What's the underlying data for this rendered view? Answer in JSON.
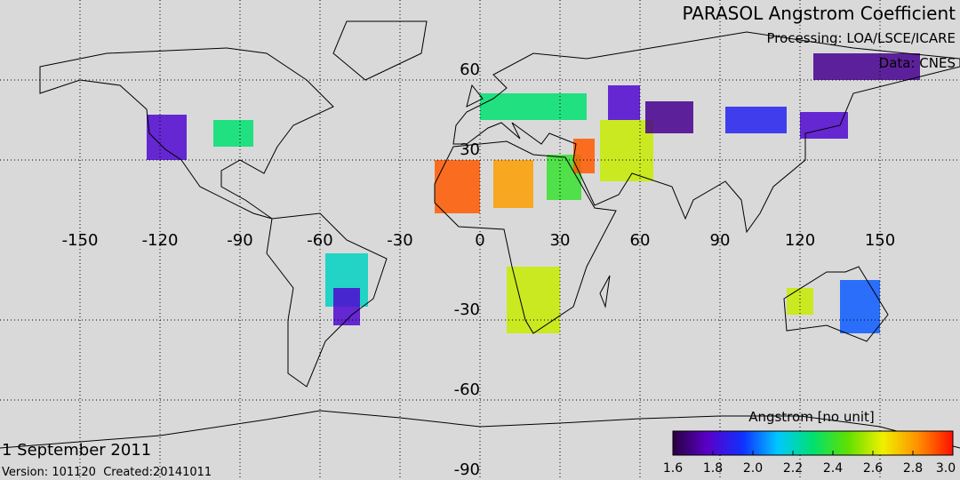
{
  "title": "PARASOL Angstrom Coefficient",
  "processing": "Processing: LOA/LSCE/ICARE",
  "source": "Data: CNES",
  "date": "1 September 2011",
  "version": "Version: 101120  Created:20141011",
  "map": {
    "xlim": [
      -180,
      180
    ],
    "ylim": [
      -90,
      90
    ],
    "xticks": [
      -150,
      -120,
      -90,
      -60,
      -30,
      0,
      30,
      60,
      90,
      120,
      150
    ],
    "yticks": [
      60,
      30,
      -30,
      -60,
      -90
    ]
  },
  "colorbar": {
    "label": "Angstrom [no unit]",
    "clim": [
      1.6,
      3.0
    ],
    "ticks": [
      1.6,
      1.8,
      {
        "value": 2,
        "label": "2.0"
      },
      2.2,
      2.4,
      2.6,
      2.8,
      {
        "value": 3,
        "label": "3.0"
      }
    ],
    "colors": [
      "#2a0040",
      "#5a00c8",
      "#1030ff",
      "#00c8ff",
      "#00e070",
      "#60e000",
      "#f0f000",
      "#ff9000",
      "#ff1000"
    ]
  },
  "swaths": [
    {
      "lon": [
        -17,
        0
      ],
      "lat": [
        10,
        30
      ],
      "value": 2.9
    },
    {
      "lon": [
        5,
        20
      ],
      "lat": [
        12,
        30
      ],
      "value": 2.8
    },
    {
      "lon": [
        25,
        38
      ],
      "lat": [
        15,
        32
      ],
      "value": 2.4
    },
    {
      "lon": [
        35,
        43
      ],
      "lat": [
        25,
        38
      ],
      "value": 2.9
    },
    {
      "lon": [
        45,
        65
      ],
      "lat": [
        22,
        45
      ],
      "value": 2.6
    },
    {
      "lon": [
        48,
        60
      ],
      "lat": [
        45,
        58
      ],
      "value": 1.8
    },
    {
      "lon": [
        62,
        80
      ],
      "lat": [
        40,
        52
      ],
      "value": 1.7
    },
    {
      "lon": [
        92,
        115
      ],
      "lat": [
        40,
        50
      ],
      "value": 1.9
    },
    {
      "lon": [
        120,
        138
      ],
      "lat": [
        38,
        48
      ],
      "value": 1.8
    },
    {
      "lon": [
        125,
        165
      ],
      "lat": [
        60,
        70
      ],
      "value": 1.7
    },
    {
      "lon": [
        0,
        40
      ],
      "lat": [
        45,
        55
      ],
      "value": 2.3
    },
    {
      "lon": [
        10,
        30
      ],
      "lat": [
        -35,
        -10
      ],
      "value": 2.6
    },
    {
      "lon": [
        -58,
        -42
      ],
      "lat": [
        -25,
        -5
      ],
      "value": 2.2
    },
    {
      "lon": [
        -55,
        -45
      ],
      "lat": [
        -32,
        -18
      ],
      "value": 1.8
    },
    {
      "lon": [
        135,
        150
      ],
      "lat": [
        -35,
        -15
      ],
      "value": 2.0
    },
    {
      "lon": [
        115,
        125
      ],
      "lat": [
        -28,
        -18
      ],
      "value": 2.6
    },
    {
      "lon": [
        -125,
        -110
      ],
      "lat": [
        30,
        47
      ],
      "value": 1.8
    },
    {
      "lon": [
        -100,
        -85
      ],
      "lat": [
        35,
        45
      ],
      "value": 2.3
    }
  ]
}
